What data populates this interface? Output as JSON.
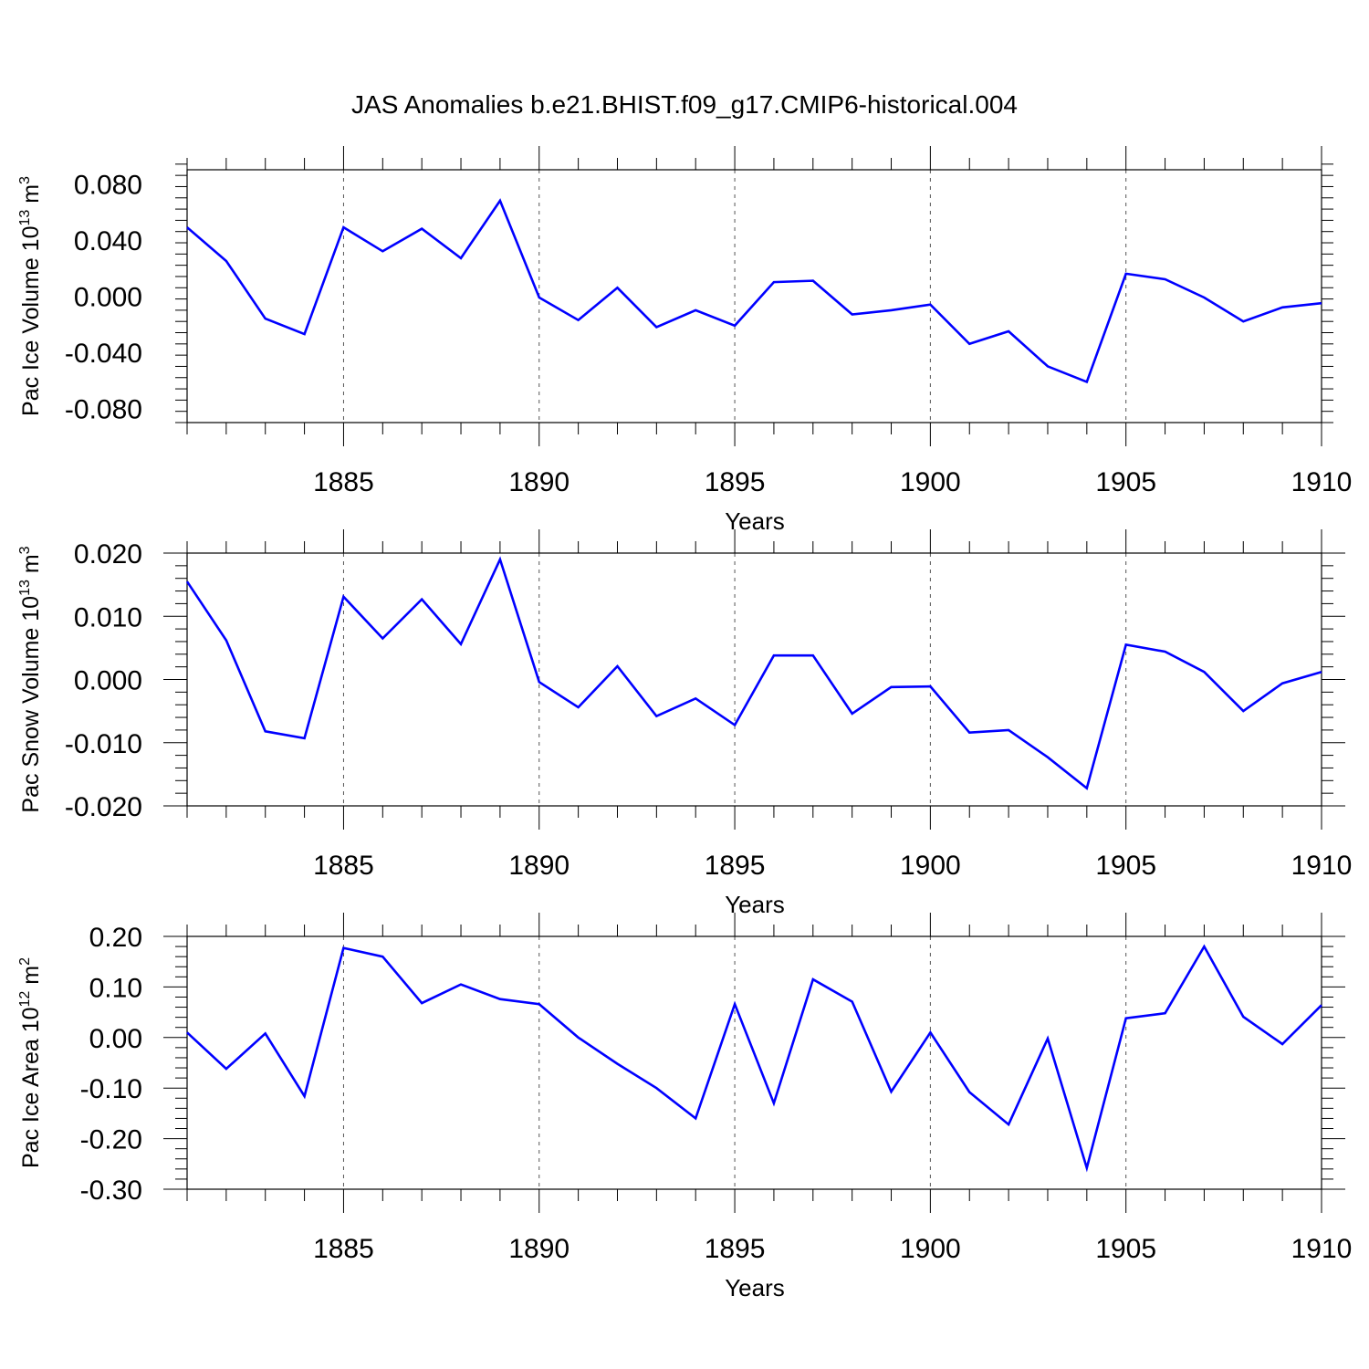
{
  "figure": {
    "title": "JAS Anomalies b.e21.BHIST.f09_g17.CMIP6-historical.004",
    "line_color": "#0000ff"
  },
  "chart_data": [
    {
      "type": "line",
      "xlabel": "Years",
      "ylabel": "Pac Ice Volume 10",
      "ylabel_exponent": "13",
      "ylabel_unit": " m",
      "ylabel_unit_exponent": "3",
      "xlim": [
        1881,
        1910
      ],
      "ylim": [
        -0.09,
        0.09
      ],
      "xticks": [
        1885,
        1890,
        1895,
        1900,
        1905,
        1910
      ],
      "xtick_labels": [
        "1885",
        "1890",
        "1895",
        "1900",
        "1905",
        "1910"
      ],
      "yticks": [
        0.08,
        0.04,
        0.0,
        -0.04,
        -0.08
      ],
      "ytick_labels": [
        "0.080",
        "0.040",
        "0.000",
        "-0.040",
        "-0.080"
      ],
      "grid": "vertical dashed at major x ticks",
      "series": [
        {
          "x": [
            1881,
            1882,
            1883,
            1884,
            1885,
            1886,
            1887,
            1888,
            1889,
            1890,
            1891,
            1892,
            1893,
            1894,
            1895,
            1896,
            1897,
            1898,
            1899,
            1900,
            1901,
            1902,
            1903,
            1904,
            1905,
            1906,
            1907,
            1908,
            1909,
            1910
          ],
          "values": [
            0.049,
            0.025,
            -0.016,
            -0.027,
            0.049,
            0.032,
            0.048,
            0.027,
            0.068,
            -0.001,
            -0.017,
            0.006,
            -0.022,
            -0.01,
            -0.021,
            0.01,
            0.011,
            -0.013,
            -0.01,
            -0.006,
            -0.034,
            -0.025,
            -0.05,
            -0.061,
            0.016,
            0.012,
            -0.001,
            -0.018,
            -0.008,
            -0.005
          ]
        }
      ]
    },
    {
      "type": "line",
      "xlabel": "Years",
      "ylabel": "Pac Snow Volume 10",
      "ylabel_exponent": "13",
      "ylabel_unit": " m",
      "ylabel_unit_exponent": "3",
      "xlim": [
        1881,
        1910
      ],
      "ylim": [
        -0.02,
        0.02
      ],
      "xticks": [
        1885,
        1890,
        1895,
        1900,
        1905,
        1910
      ],
      "xtick_labels": [
        "1885",
        "1890",
        "1895",
        "1900",
        "1905",
        "1910"
      ],
      "yticks": [
        0.02,
        0.01,
        0.0,
        -0.01,
        -0.02
      ],
      "ytick_labels": [
        "0.020",
        "0.010",
        "0.000",
        "-0.010",
        "-0.020"
      ],
      "grid": "vertical dashed at major x ticks",
      "series": [
        {
          "x": [
            1881,
            1882,
            1883,
            1884,
            1885,
            1886,
            1887,
            1888,
            1889,
            1890,
            1891,
            1892,
            1893,
            1894,
            1895,
            1896,
            1897,
            1898,
            1899,
            1900,
            1901,
            1902,
            1903,
            1904,
            1905,
            1906,
            1907,
            1908,
            1909,
            1910
          ],
          "values": [
            0.0155,
            0.0062,
            -0.0082,
            -0.0093,
            0.0131,
            0.0065,
            0.0127,
            0.0056,
            0.019,
            -0.0004,
            -0.0044,
            0.0021,
            -0.0058,
            -0.003,
            -0.0072,
            0.0038,
            0.0038,
            -0.0054,
            -0.0012,
            -0.0011,
            -0.0084,
            -0.008,
            -0.0123,
            -0.0172,
            0.0055,
            0.0044,
            0.0012,
            -0.005,
            -0.0006,
            0.0012
          ]
        }
      ]
    },
    {
      "type": "line",
      "xlabel": "Years",
      "ylabel": "Pac Ice Area 10",
      "ylabel_exponent": "12",
      "ylabel_unit": " m",
      "ylabel_unit_exponent": "2",
      "xlim": [
        1881,
        1910
      ],
      "ylim": [
        -0.3,
        0.2
      ],
      "xticks": [
        1885,
        1890,
        1895,
        1900,
        1905,
        1910
      ],
      "xtick_labels": [
        "1885",
        "1890",
        "1895",
        "1900",
        "1905",
        "1910"
      ],
      "yticks": [
        0.2,
        0.1,
        0.0,
        -0.1,
        -0.2,
        -0.3
      ],
      "ytick_labels": [
        "0.20",
        "0.10",
        "0.00",
        "-0.10",
        "-0.20",
        "-0.30"
      ],
      "grid": "vertical dashed at major x ticks",
      "series": [
        {
          "x": [
            1881,
            1882,
            1883,
            1884,
            1885,
            1886,
            1887,
            1888,
            1889,
            1890,
            1891,
            1892,
            1893,
            1894,
            1895,
            1896,
            1897,
            1898,
            1899,
            1900,
            1901,
            1902,
            1903,
            1904,
            1905,
            1906,
            1907,
            1908,
            1909,
            1910
          ],
          "values": [
            0.01,
            -0.062,
            0.008,
            -0.116,
            0.177,
            0.16,
            0.068,
            0.105,
            0.076,
            0.066,
            0.0,
            -0.052,
            -0.1,
            -0.16,
            0.066,
            -0.13,
            0.115,
            0.071,
            -0.107,
            0.01,
            -0.108,
            -0.172,
            -0.002,
            -0.258,
            0.038,
            0.048,
            0.18,
            0.041,
            -0.013,
            0.064
          ]
        }
      ]
    }
  ]
}
